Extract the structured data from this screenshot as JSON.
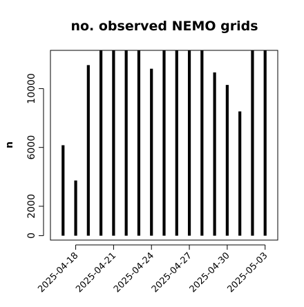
{
  "chart_data": {
    "type": "bar",
    "title": "no. observed NEMO grids",
    "xlabel": "",
    "ylabel": "n",
    "grid": false,
    "legend": "none",
    "bar_color": "#000000",
    "x": [
      "2025-04-17",
      "2025-04-18",
      "2025-04-19",
      "2025-04-20",
      "2025-04-21",
      "2025-04-22",
      "2025-04-23",
      "2025-04-24",
      "2025-04-25",
      "2025-04-26",
      "2025-04-27",
      "2025-04-28",
      "2025-04-29",
      "2025-04-30",
      "2025-05-01",
      "2025-05-02",
      "2025-05-03"
    ],
    "values": [
      6150,
      3750,
      11600,
      12600,
      12600,
      12600,
      12600,
      11350,
      12600,
      12600,
      12600,
      12600,
      11100,
      10250,
      8450,
      12600,
      12600
    ],
    "xlim": [
      "2025-04-16",
      "2025-05-04"
    ],
    "ylim": [
      -300,
      12600
    ],
    "yticks": [
      0,
      2000,
      6000,
      10000
    ],
    "yticklabels": [
      "0",
      "2000",
      "6000",
      "10000"
    ],
    "xticks": [
      "2025-04-18",
      "2025-04-21",
      "2025-04-24",
      "2025-04-27",
      "2025-04-30",
      "2025-05-03"
    ],
    "xticklabels": [
      "2025-04-18",
      "2025-04-21",
      "2025-04-24",
      "2025-04-27",
      "2025-04-30",
      "2025-05-03"
    ]
  }
}
